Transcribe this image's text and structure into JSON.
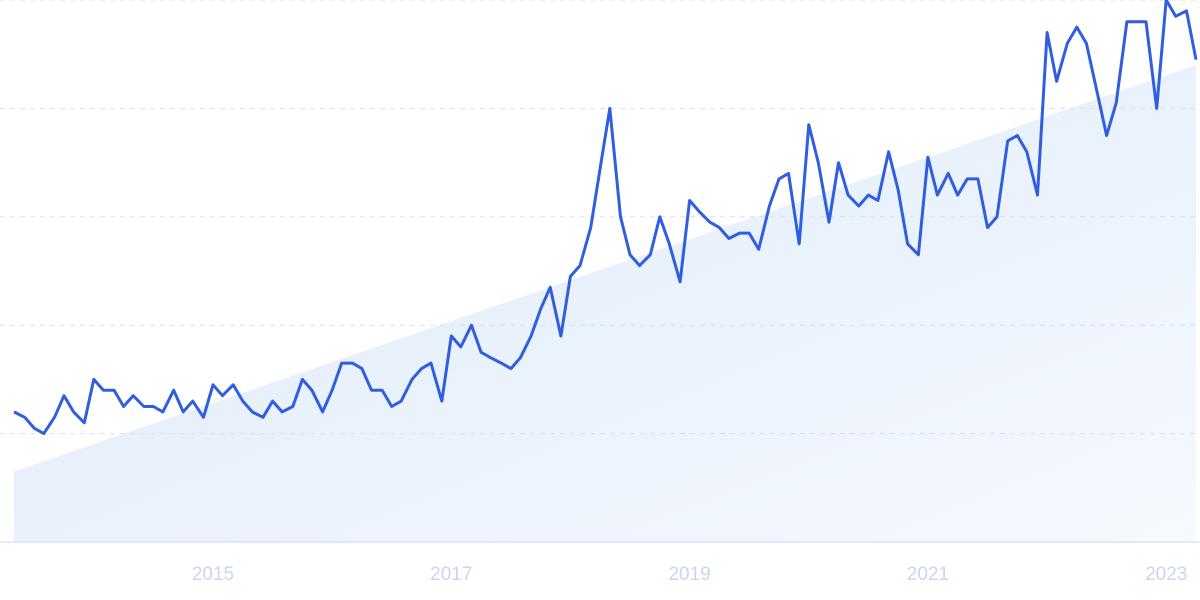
{
  "chart_data": {
    "type": "line",
    "x": [
      2013.33,
      2013.42,
      2013.5,
      2013.58,
      2013.67,
      2013.75,
      2013.83,
      2013.92,
      2014.0,
      2014.08,
      2014.17,
      2014.25,
      2014.33,
      2014.42,
      2014.5,
      2014.58,
      2014.67,
      2014.75,
      2014.83,
      2014.92,
      2015.0,
      2015.08,
      2015.17,
      2015.25,
      2015.33,
      2015.42,
      2015.5,
      2015.58,
      2015.67,
      2015.75,
      2015.83,
      2015.92,
      2016.0,
      2016.08,
      2016.17,
      2016.25,
      2016.33,
      2016.42,
      2016.5,
      2016.58,
      2016.67,
      2016.75,
      2016.83,
      2016.92,
      2017.0,
      2017.08,
      2017.17,
      2017.25,
      2017.33,
      2017.42,
      2017.5,
      2017.58,
      2017.67,
      2017.75,
      2017.83,
      2017.92,
      2018.0,
      2018.08,
      2018.17,
      2018.25,
      2018.33,
      2018.42,
      2018.5,
      2018.58,
      2018.67,
      2018.75,
      2018.83,
      2018.92,
      2019.0,
      2019.08,
      2019.17,
      2019.25,
      2019.33,
      2019.42,
      2019.5,
      2019.58,
      2019.67,
      2019.75,
      2019.83,
      2019.92,
      2020.0,
      2020.08,
      2020.17,
      2020.25,
      2020.33,
      2020.42,
      2020.5,
      2020.58,
      2020.67,
      2020.75,
      2020.83,
      2020.92,
      2021.0,
      2021.08,
      2021.17,
      2021.25,
      2021.33,
      2021.42,
      2021.5,
      2021.58,
      2021.67,
      2021.75,
      2021.83,
      2021.92,
      2022.0,
      2022.08,
      2022.17,
      2022.25,
      2022.33,
      2022.42,
      2022.5,
      2022.58,
      2022.67,
      2022.75,
      2022.83,
      2022.92,
      2023.0,
      2023.08,
      2023.17,
      2023.25
    ],
    "series": [
      {
        "color": "#2f5fe0",
        "values": [
          24,
          23,
          21,
          20,
          23,
          27,
          24,
          22,
          30,
          28,
          28,
          25,
          27,
          25,
          25,
          24,
          28,
          24,
          26,
          23,
          29,
          27,
          29,
          26,
          24,
          23,
          26,
          24,
          25,
          30,
          28,
          24,
          28,
          33,
          33,
          32,
          28,
          28,
          25,
          26,
          30,
          32,
          33,
          26,
          38,
          36,
          40,
          35,
          34,
          33,
          32,
          34,
          38,
          43,
          47,
          38,
          49,
          51,
          58,
          69,
          80,
          60,
          53,
          51,
          53,
          60,
          55,
          48,
          63,
          61,
          59,
          58,
          56,
          57,
          57,
          54,
          62,
          67,
          68,
          55,
          77,
          70,
          59,
          70,
          64,
          62,
          64,
          63,
          72,
          65,
          55,
          53,
          71,
          64,
          68,
          64,
          67,
          67,
          58,
          60,
          74,
          75,
          72,
          64,
          94,
          85,
          92,
          95,
          92,
          83,
          75,
          81,
          96,
          96,
          96,
          80,
          100,
          97,
          98,
          89
        ]
      }
    ],
    "trend": [
      13,
      88
    ],
    "trend_color": "#dce9fb",
    "xlim": [
      2013.33,
      2023.25
    ],
    "xticks": [
      2015,
      2017,
      2019,
      2021,
      2023
    ],
    "ylim": [
      0,
      100
    ],
    "yticks": [
      0,
      20,
      40,
      60,
      80,
      100
    ],
    "grid": true
  }
}
